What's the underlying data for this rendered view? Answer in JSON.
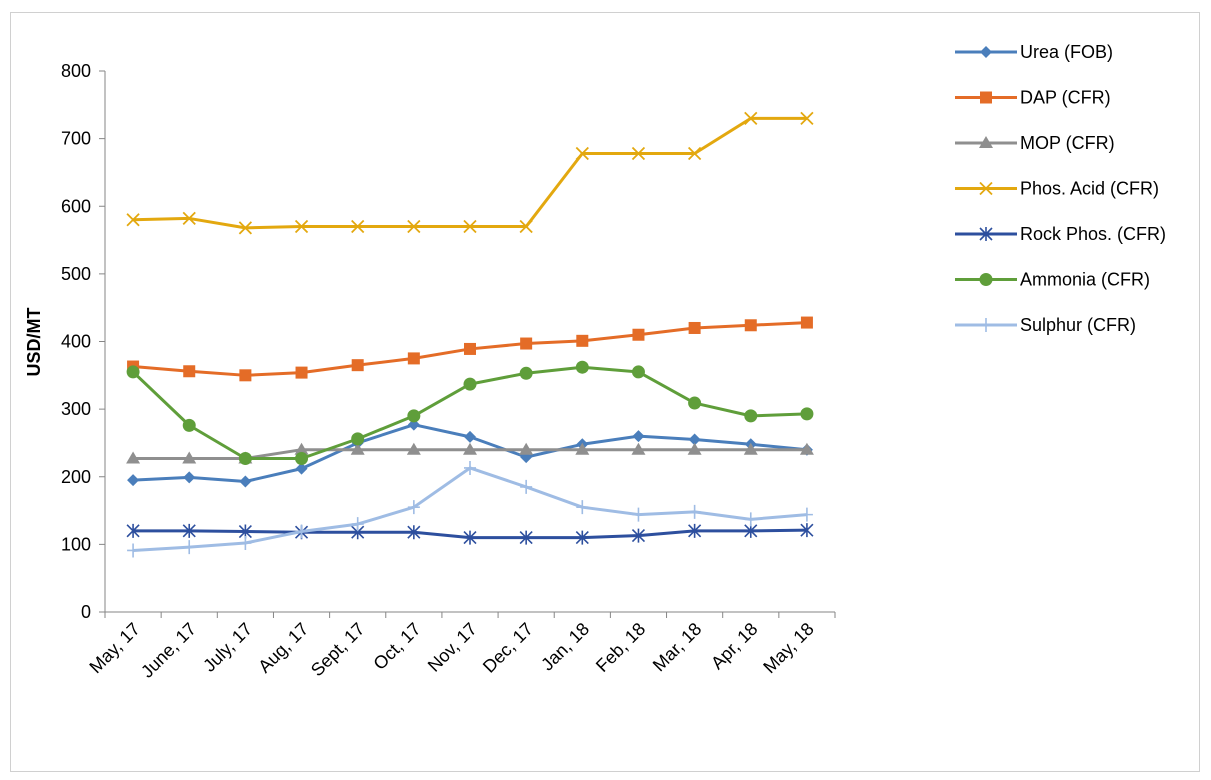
{
  "chart_data": {
    "type": "line",
    "title": "",
    "xlabel": "",
    "ylabel": "USD/MT",
    "ylim": [
      0,
      800
    ],
    "yticks": [
      0,
      100,
      200,
      300,
      400,
      500,
      600,
      700,
      800
    ],
    "grid": false,
    "legend_position": "right",
    "categories": [
      "May, 17",
      "June, 17",
      "July, 17",
      "Aug, 17",
      "Sept, 17",
      "Oct, 17",
      "Nov, 17",
      "Dec, 17",
      "Jan, 18",
      "Feb, 18",
      "Mar, 18",
      "Apr, 18",
      "May, 18"
    ],
    "series": [
      {
        "name": "Urea (FOB)",
        "color": "#4a7ebb",
        "marker": "diamond",
        "values": [
          195,
          199,
          193,
          212,
          250,
          277,
          259,
          229,
          248,
          260,
          255,
          248,
          240
        ]
      },
      {
        "name": "DAP (CFR)",
        "color": "#e46c27",
        "marker": "square",
        "values": [
          363,
          356,
          350,
          354,
          365,
          375,
          389,
          397,
          401,
          410,
          420,
          424,
          428
        ]
      },
      {
        "name": "MOP (CFR)",
        "color": "#8f8f8f",
        "marker": "triangle",
        "values": [
          227,
          227,
          227,
          240,
          240,
          240,
          240,
          240,
          240,
          240,
          240,
          240,
          240
        ]
      },
      {
        "name": "Phos. Acid (CFR)",
        "color": "#e3a80f",
        "marker": "x",
        "values": [
          580,
          582,
          568,
          570,
          570,
          570,
          570,
          570,
          678,
          678,
          678,
          730,
          730
        ]
      },
      {
        "name": "Rock Phos. (CFR)",
        "color": "#2d4f9e",
        "marker": "star",
        "values": [
          120,
          120,
          119,
          118,
          118,
          118,
          110,
          110,
          110,
          113,
          120,
          120,
          121
        ]
      },
      {
        "name": "Ammonia (CFR)",
        "color": "#5f9e3a",
        "marker": "circle",
        "values": [
          355,
          276,
          227,
          227,
          256,
          290,
          337,
          353,
          362,
          355,
          309,
          290,
          293
        ]
      },
      {
        "name": "Sulphur (CFR)",
        "color": "#9fbce4",
        "marker": "plus",
        "values": [
          91,
          96,
          102,
          119,
          130,
          155,
          213,
          185,
          155,
          144,
          148,
          137,
          144
        ]
      }
    ]
  }
}
